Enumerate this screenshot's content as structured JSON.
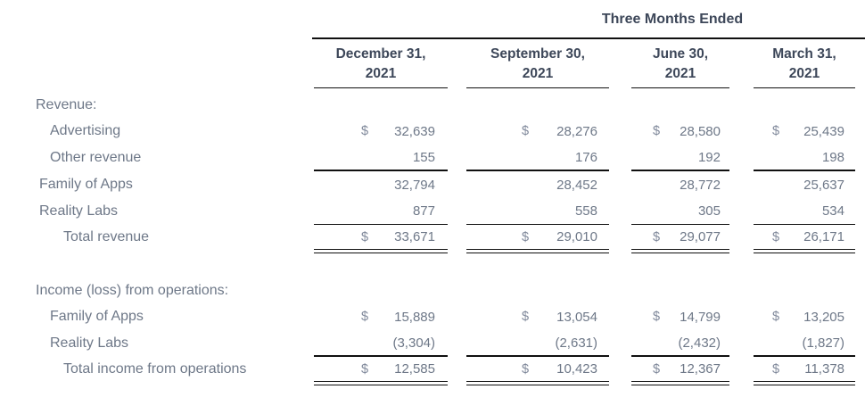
{
  "page": {
    "background": "#ffffff"
  },
  "colors": {
    "heading_text": "#3d4759",
    "body_text": "#6e7888",
    "dollar_text": "#80899b",
    "rule": "#101010"
  },
  "table": {
    "title": "Three Months Ended",
    "currency_symbol": "$",
    "columns": [
      {
        "line1": "December 31,",
        "line2": "2021"
      },
      {
        "line1": "September 30,",
        "line2": "2021"
      },
      {
        "line1": "June 30,",
        "line2": "2021"
      },
      {
        "line1": "March 31,",
        "line2": "2021"
      }
    ],
    "sections": [
      {
        "header": "Revenue:",
        "rows": [
          {
            "label": "Advertising",
            "indent": 1,
            "dollar": true,
            "underline": "none",
            "total": false,
            "values": [
              "32,639",
              "28,276",
              "28,580",
              "25,439"
            ]
          },
          {
            "label": "Other revenue",
            "indent": 1,
            "dollar": false,
            "underline": "thick",
            "total": false,
            "values": [
              "155",
              "176",
              "192",
              "198"
            ]
          },
          {
            "label": "Family of Apps",
            "indent": 0,
            "dollar": false,
            "underline": "none",
            "total": false,
            "values": [
              "32,794",
              "28,452",
              "28,772",
              "25,637"
            ]
          },
          {
            "label": "Reality Labs",
            "indent": 0,
            "dollar": false,
            "underline": "thin",
            "total": false,
            "values": [
              "877",
              "558",
              "305",
              "534"
            ]
          },
          {
            "label": "Total revenue",
            "indent": 2,
            "dollar": true,
            "underline": "double",
            "total": true,
            "values": [
              "33,671",
              "29,010",
              "29,077",
              "26,171"
            ]
          }
        ]
      },
      {
        "header": "Income (loss) from operations:",
        "rows": [
          {
            "label": "Family of Apps",
            "indent": 1,
            "dollar": true,
            "underline": "none",
            "total": false,
            "values": [
              "15,889",
              "13,054",
              "14,799",
              "13,205"
            ]
          },
          {
            "label": "Reality Labs",
            "indent": 1,
            "dollar": false,
            "underline": "thick",
            "total": false,
            "values": [
              "(3,304)",
              "(2,631)",
              "(2,432)",
              "(1,827)"
            ]
          },
          {
            "label": "Total income from operations",
            "indent": 2,
            "dollar": true,
            "underline": "double",
            "total": true,
            "values": [
              "12,585",
              "10,423",
              "12,367",
              "11,378"
            ]
          }
        ]
      }
    ]
  }
}
